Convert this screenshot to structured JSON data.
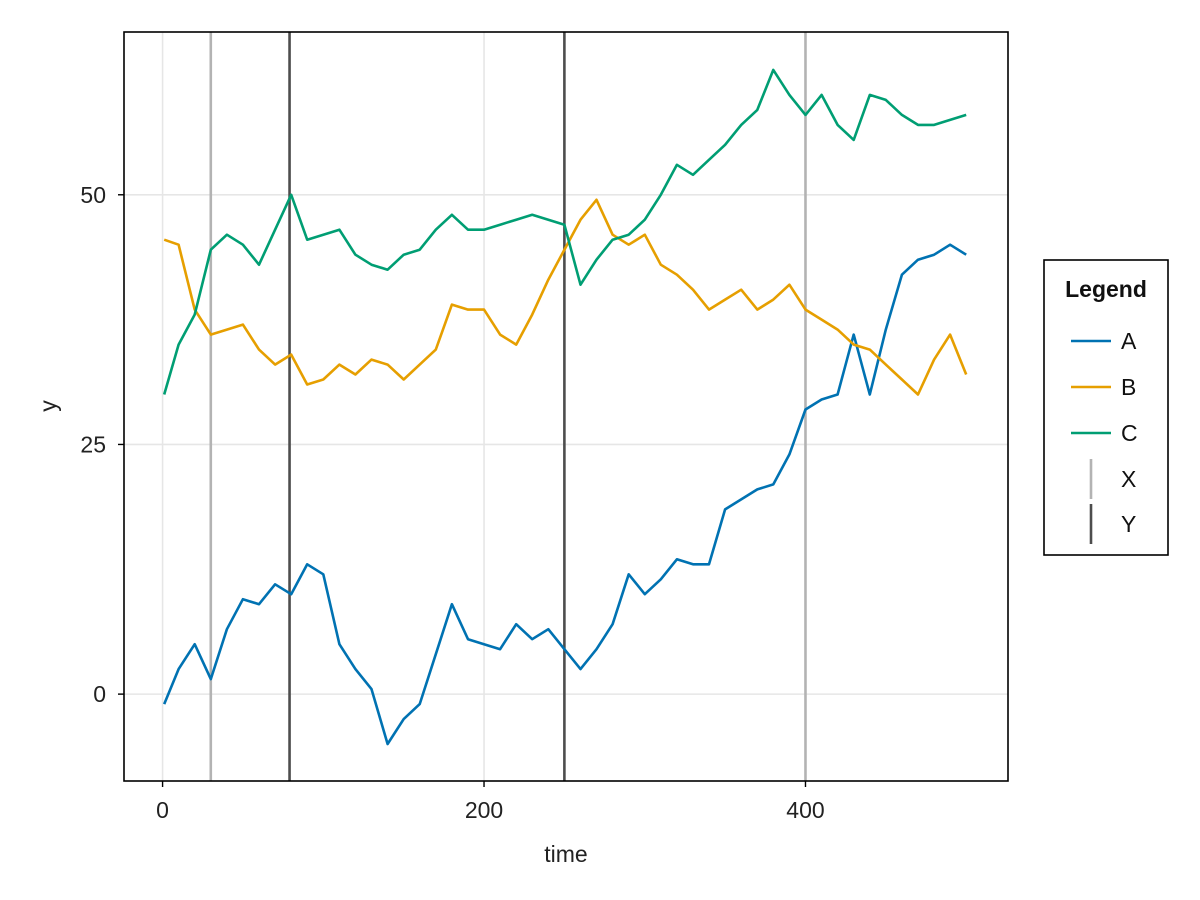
{
  "chart_data": {
    "type": "line",
    "title": "",
    "xlabel": "time",
    "ylabel": "y",
    "xlim": [
      -24,
      526
    ],
    "ylim": [
      -8.7,
      66.3
    ],
    "xticks": [
      0,
      200,
      400
    ],
    "yticks": [
      0,
      25,
      50
    ],
    "grid": true,
    "legend_position": "right",
    "legend_title": "Legend",
    "series": [
      {
        "name": "A",
        "color": "#0072b2",
        "x": [
          1,
          10,
          20,
          30,
          40,
          50,
          60,
          70,
          80,
          90,
          100,
          110,
          120,
          130,
          140,
          150,
          160,
          170,
          180,
          190,
          200,
          210,
          220,
          230,
          240,
          250,
          260,
          270,
          280,
          290,
          300,
          310,
          320,
          330,
          340,
          350,
          360,
          370,
          380,
          390,
          400,
          410,
          420,
          430,
          440,
          450,
          460,
          470,
          480,
          490,
          500
        ],
        "values": [
          -1.0,
          2.5,
          5.0,
          1.5,
          6.5,
          9.5,
          9.0,
          11.0,
          10.0,
          13.0,
          12.0,
          5.0,
          2.5,
          0.5,
          -5.0,
          -2.5,
          -1.0,
          4.0,
          9.0,
          5.5,
          5.0,
          4.5,
          7.0,
          5.5,
          6.5,
          4.5,
          2.5,
          4.5,
          7.0,
          12.0,
          10.0,
          11.5,
          13.5,
          13.0,
          13.0,
          18.5,
          19.5,
          20.5,
          21.0,
          24.0,
          28.5,
          29.5,
          30.0,
          36.0,
          30.0,
          36.5,
          42.0,
          43.5,
          44.0,
          45.0,
          44.0
        ]
      },
      {
        "name": "B",
        "color": "#e69f00",
        "x": [
          1,
          10,
          20,
          30,
          40,
          50,
          60,
          70,
          80,
          90,
          100,
          110,
          120,
          130,
          140,
          150,
          160,
          170,
          180,
          190,
          200,
          210,
          220,
          230,
          240,
          250,
          260,
          270,
          280,
          290,
          300,
          310,
          320,
          330,
          340,
          350,
          360,
          370,
          380,
          390,
          400,
          410,
          420,
          430,
          440,
          450,
          460,
          470,
          480,
          490,
          500
        ],
        "values": [
          45.5,
          45.0,
          38.5,
          36.0,
          36.5,
          37.0,
          34.5,
          33.0,
          34.0,
          31.0,
          31.5,
          33.0,
          32.0,
          33.5,
          33.0,
          31.5,
          33.0,
          34.5,
          39.0,
          38.5,
          38.5,
          36.0,
          35.0,
          38.0,
          41.5,
          44.5,
          47.5,
          49.5,
          46.0,
          45.0,
          46.0,
          43.0,
          42.0,
          40.5,
          38.5,
          39.5,
          40.5,
          38.5,
          39.5,
          41.0,
          38.5,
          37.5,
          36.5,
          35.0,
          34.5,
          33.0,
          31.5,
          30.0,
          33.5,
          36.0,
          32.0
        ]
      },
      {
        "name": "C",
        "color": "#009e73",
        "x": [
          1,
          10,
          20,
          30,
          40,
          50,
          60,
          70,
          80,
          90,
          100,
          110,
          120,
          130,
          140,
          150,
          160,
          170,
          180,
          190,
          200,
          210,
          220,
          230,
          240,
          250,
          260,
          270,
          280,
          290,
          300,
          310,
          320,
          330,
          340,
          350,
          360,
          370,
          380,
          390,
          400,
          410,
          420,
          430,
          440,
          450,
          460,
          470,
          480,
          490,
          500
        ],
        "values": [
          30.0,
          35.0,
          38.0,
          44.5,
          46.0,
          45.0,
          43.0,
          46.5,
          50.0,
          45.5,
          46.0,
          46.5,
          44.0,
          43.0,
          42.5,
          44.0,
          44.5,
          46.5,
          48.0,
          46.5,
          46.5,
          47.0,
          47.5,
          48.0,
          47.5,
          47.0,
          41.0,
          43.5,
          45.5,
          46.0,
          47.5,
          50.0,
          53.0,
          52.0,
          53.5,
          55.0,
          57.0,
          58.5,
          62.5,
          60.0,
          58.0,
          60.0,
          57.0,
          55.5,
          60.0,
          59.5,
          58.0,
          57.0,
          57.0,
          57.5,
          58.0
        ]
      }
    ],
    "vlines": [
      {
        "name": "X",
        "color": "#b3b3b3",
        "x": [
          30,
          400
        ]
      },
      {
        "name": "Y",
        "color": "#4d4d4d",
        "x": [
          79,
          250
        ]
      }
    ]
  }
}
